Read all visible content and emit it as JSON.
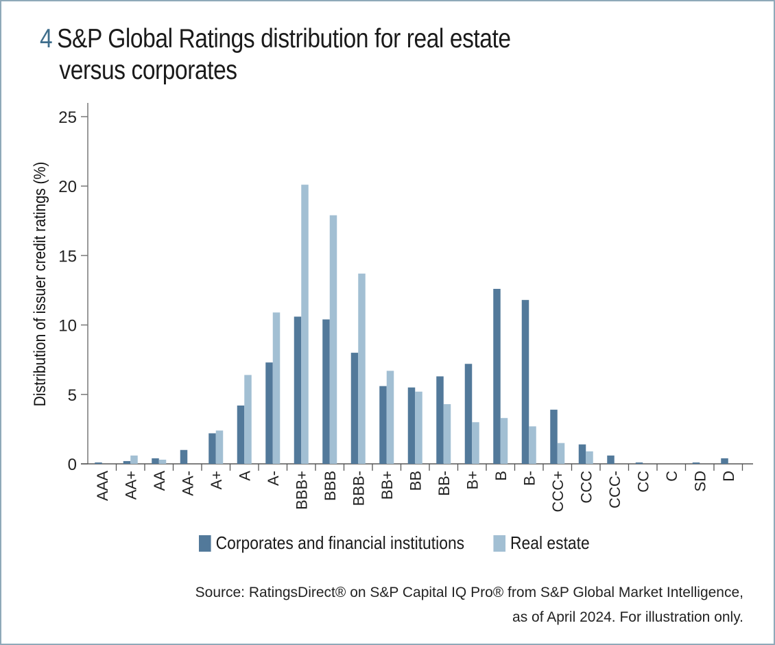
{
  "figure": {
    "number": "4",
    "title_line1": "S&P Global Ratings distribution for real estate",
    "title_line2": "versus corporates",
    "source_line1": "Source: RatingsDirect® on S&P Capital IQ Pro® from S&P Global Market Intelligence,",
    "source_line2": "as of April 2024. For illustration only."
  },
  "chart_data": {
    "type": "bar",
    "title": "S&P Global Ratings distribution for real estate versus corporates",
    "xlabel": "",
    "ylabel": "Distribution of issuer credit  ratings (%)",
    "ylim": [
      0,
      25
    ],
    "yticks": [
      0,
      5,
      10,
      15,
      20,
      25
    ],
    "grid": false,
    "legend_position": "bottom-center",
    "categories": [
      "AAA",
      "AA+",
      "AA",
      "AA-",
      "A+",
      "A",
      "A-",
      "BBB+",
      "BBB",
      "BBB-",
      "BB+",
      "BB",
      "BB-",
      "B+",
      "B",
      "B-",
      "CCC+",
      "CCC",
      "CCC-",
      "CC",
      "C",
      "SD",
      "D"
    ],
    "series": [
      {
        "name": "Corporates and financial institutions",
        "color": "#52799a",
        "values": [
          0.1,
          0.2,
          0.4,
          1.0,
          2.2,
          4.2,
          7.3,
          10.6,
          10.4,
          8.0,
          5.6,
          5.5,
          6.3,
          7.2,
          12.6,
          11.8,
          3.9,
          1.4,
          0.6,
          0.1,
          0.0,
          0.1,
          0.4
        ]
      },
      {
        "name": "Real estate",
        "color": "#a2bfd3",
        "values": [
          0.0,
          0.6,
          0.3,
          0.0,
          2.4,
          6.4,
          10.9,
          20.1,
          17.9,
          13.7,
          6.7,
          5.2,
          4.3,
          3.0,
          3.3,
          2.7,
          1.5,
          0.9,
          0.0,
          0.0,
          0.0,
          0.0,
          0.0
        ]
      }
    ]
  }
}
